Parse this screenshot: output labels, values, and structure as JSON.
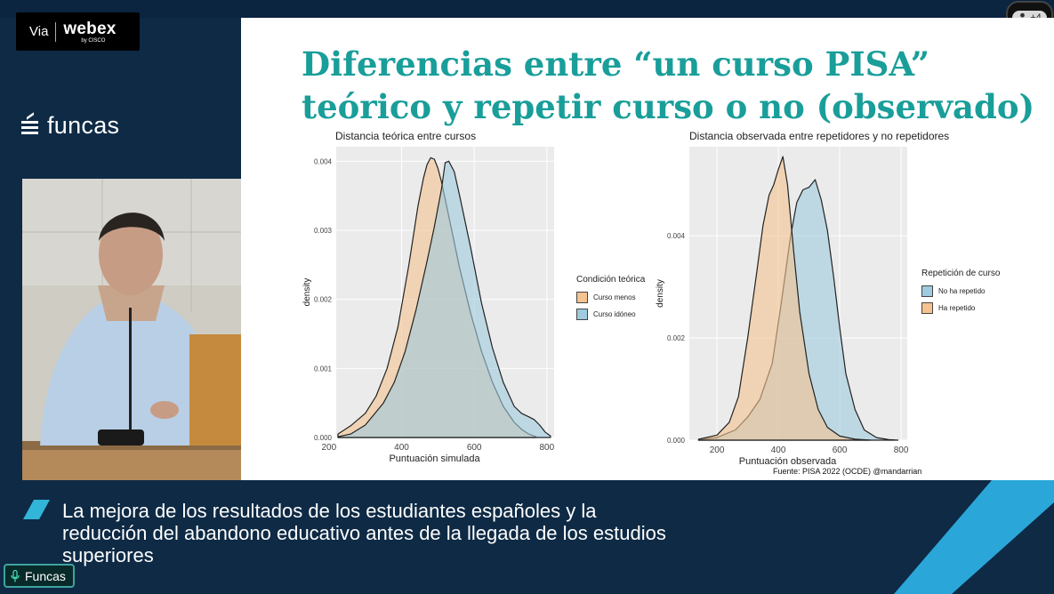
{
  "meeting": {
    "app_via": "Via",
    "app_brand": "webex",
    "app_by": "by CISCO",
    "participants_more": "+4",
    "org_logo": "funcas",
    "speaker_name": "Funcas"
  },
  "slide": {
    "title": "Diferencias entre “un curso PISA” teórico y repetir curso o no (observado)",
    "source": "Fuente: PISA 2022 (OCDE)  @mandarrian"
  },
  "caption": "La mejora de los resultados de los estudiantes españoles y la reducción del abandono educativo antes de la llegada de los estudios superiores",
  "chart_data": [
    {
      "type": "area",
      "title": "Distancia teórica entre cursos",
      "xlabel": "Puntuación simulada",
      "ylabel": "density",
      "xlim": [
        220,
        820
      ],
      "ylim": [
        0,
        0.00403
      ],
      "x_ticks": [
        200,
        400,
        600,
        800
      ],
      "y_ticks": [
        "0.000",
        "0.001",
        "0.002",
        "0.003",
        "0.004"
      ],
      "grid": true,
      "legend_title": "Condición teórica",
      "legend_position": "right",
      "series": [
        {
          "name": "Curso menos",
          "color": "#f4c38f",
          "x": [
            225,
            260,
            300,
            330,
            360,
            390,
            420,
            445,
            460,
            470,
            480,
            490,
            500,
            510,
            520,
            540,
            560,
            590,
            620,
            650,
            680,
            710,
            730,
            750,
            770
          ],
          "y": [
            5e-05,
            0.00017,
            0.00035,
            0.0006,
            0.001,
            0.0016,
            0.0025,
            0.00335,
            0.00375,
            0.00395,
            0.00405,
            0.00403,
            0.0039,
            0.0037,
            0.00345,
            0.00295,
            0.00245,
            0.0018,
            0.00125,
            0.0008,
            0.00045,
            0.00022,
            0.00012,
            5e-05,
            1e-05
          ]
        },
        {
          "name": "Curso idóneo",
          "color": "#9ecbdd",
          "x": [
            225,
            260,
            300,
            350,
            380,
            410,
            440,
            470,
            490,
            510,
            520,
            530,
            545,
            560,
            590,
            620,
            650,
            680,
            710,
            730,
            750,
            765,
            780,
            795,
            810
          ],
          "y": [
            1e-05,
            5e-05,
            0.00018,
            0.0005,
            0.0008,
            0.00125,
            0.00185,
            0.00255,
            0.00305,
            0.0036,
            0.00398,
            0.004,
            0.00385,
            0.0035,
            0.00275,
            0.00195,
            0.0013,
            0.0008,
            0.00045,
            0.00035,
            0.0003,
            0.00026,
            0.00018,
            8e-05,
            2e-05
          ]
        }
      ]
    },
    {
      "type": "area",
      "title": "Distancia observada entre repetidores y no repetidores",
      "xlabel": "Puntuación observada",
      "ylabel": "density",
      "xlim": [
        110,
        820
      ],
      "ylim": [
        0,
        0.0055
      ],
      "x_ticks": [
        200,
        400,
        600,
        800
      ],
      "y_ticks": [
        "0.000",
        "0.002",
        "0.004"
      ],
      "grid": true,
      "legend_title": "Repetición de curso",
      "legend_position": "right",
      "series": [
        {
          "name": "No ha repetido",
          "color": "#9ecbdd",
          "x": [
            140,
            200,
            260,
            300,
            340,
            380,
            410,
            440,
            460,
            480,
            500,
            520,
            540,
            560,
            580,
            600,
            620,
            650,
            680,
            720,
            760,
            790
          ],
          "y": [
            1e-05,
            5e-05,
            0.0002,
            0.00045,
            0.0008,
            0.0015,
            0.0027,
            0.004,
            0.00465,
            0.0049,
            0.00495,
            0.0051,
            0.0047,
            0.0041,
            0.0032,
            0.0022,
            0.0013,
            0.0006,
            0.0002,
            5e-05,
            1e-05,
            0.0
          ]
        },
        {
          "name": "Ha repetido",
          "color": "#f4c38f",
          "x": [
            140,
            200,
            240,
            270,
            300,
            330,
            350,
            370,
            385,
            400,
            415,
            430,
            450,
            470,
            500,
            530,
            560,
            600,
            650,
            700
          ],
          "y": [
            2e-05,
            0.0001,
            0.00035,
            0.00085,
            0.002,
            0.0033,
            0.0042,
            0.0048,
            0.005,
            0.0053,
            0.00555,
            0.005,
            0.0037,
            0.0025,
            0.0013,
            0.0006,
            0.00025,
            8e-05,
            2e-05,
            0.0
          ]
        }
      ]
    }
  ]
}
